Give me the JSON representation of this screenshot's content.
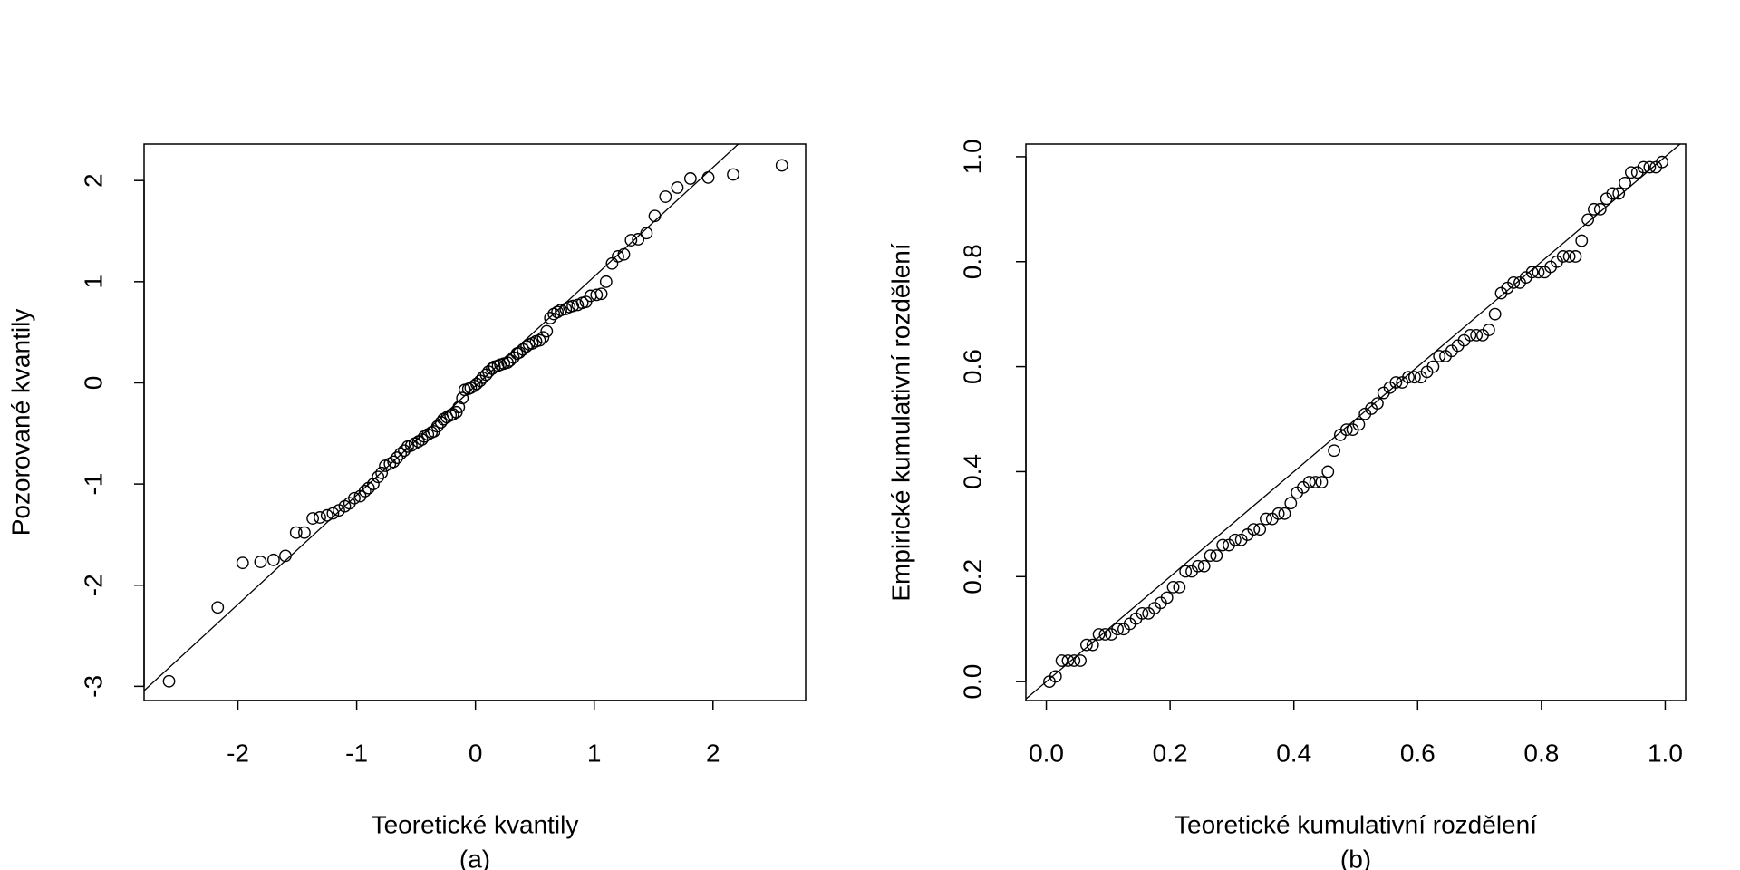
{
  "chart_data": [
    {
      "type": "scatter",
      "xlabel": "Teoretické kvantily",
      "caption": "(a)",
      "ylabel": "Pozorované kvantily",
      "xlim": [
        -2.79,
        2.78
      ],
      "ylim": [
        -3.14,
        2.36
      ],
      "xticks": [
        -2,
        -1,
        0,
        1,
        2
      ],
      "yticks": [
        -3,
        -2,
        -1,
        0,
        1,
        2
      ],
      "ref_line": {
        "slope": 1.08,
        "intercept": -0.03
      },
      "color": "#000000",
      "x": [
        -2.58,
        -2.17,
        -1.96,
        -1.81,
        -1.7,
        -1.6,
        -1.51,
        -1.44,
        -1.37,
        -1.31,
        -1.25,
        -1.2,
        -1.15,
        -1.1,
        -1.06,
        -1.02,
        -0.97,
        -0.93,
        -0.9,
        -0.86,
        -0.82,
        -0.79,
        -0.76,
        -0.72,
        -0.69,
        -0.66,
        -0.63,
        -0.6,
        -0.57,
        -0.54,
        -0.51,
        -0.48,
        -0.45,
        -0.43,
        -0.4,
        -0.37,
        -0.35,
        -0.32,
        -0.29,
        -0.27,
        -0.24,
        -0.21,
        -0.19,
        -0.16,
        -0.14,
        -0.11,
        -0.09,
        -0.06,
        -0.04,
        -0.01,
        0.01,
        0.04,
        0.06,
        0.09,
        0.11,
        0.14,
        0.16,
        0.19,
        0.21,
        0.24,
        0.27,
        0.29,
        0.32,
        0.35,
        0.37,
        0.4,
        0.43,
        0.45,
        0.48,
        0.51,
        0.54,
        0.57,
        0.6,
        0.63,
        0.66,
        0.69,
        0.72,
        0.76,
        0.79,
        0.82,
        0.86,
        0.9,
        0.93,
        0.97,
        1.02,
        1.06,
        1.1,
        1.15,
        1.2,
        1.25,
        1.31,
        1.37,
        1.44,
        1.51,
        1.6,
        1.7,
        1.81,
        1.96,
        2.17,
        2.58
      ],
      "values": [
        -2.95,
        -2.22,
        -1.78,
        -1.77,
        -1.75,
        -1.71,
        -1.48,
        -1.48,
        -1.34,
        -1.33,
        -1.31,
        -1.29,
        -1.26,
        -1.22,
        -1.19,
        -1.14,
        -1.12,
        -1.07,
        -1.04,
        -1.0,
        -0.93,
        -0.89,
        -0.82,
        -0.8,
        -0.78,
        -0.74,
        -0.7,
        -0.67,
        -0.63,
        -0.62,
        -0.6,
        -0.58,
        -0.56,
        -0.53,
        -0.51,
        -0.49,
        -0.48,
        -0.43,
        -0.39,
        -0.36,
        -0.34,
        -0.32,
        -0.31,
        -0.29,
        -0.24,
        -0.15,
        -0.07,
        -0.06,
        -0.05,
        -0.03,
        -0.01,
        0.02,
        0.05,
        0.08,
        0.11,
        0.14,
        0.16,
        0.17,
        0.18,
        0.19,
        0.2,
        0.22,
        0.25,
        0.29,
        0.3,
        0.33,
        0.36,
        0.38,
        0.39,
        0.41,
        0.42,
        0.45,
        0.51,
        0.64,
        0.68,
        0.7,
        0.72,
        0.73,
        0.75,
        0.76,
        0.77,
        0.79,
        0.8,
        0.86,
        0.87,
        0.88,
        1.0,
        1.18,
        1.25,
        1.27,
        1.41,
        1.42,
        1.48,
        1.65,
        1.84,
        1.93,
        2.02,
        2.03,
        2.06,
        2.15
      ]
    },
    {
      "type": "scatter",
      "xlabel": "Teoretické kumulativní rozdělení",
      "caption": "(b)",
      "ylabel": "Empirické kumulativní rozdělení",
      "xlim": [
        -0.033,
        1.033
      ],
      "ylim": [
        -0.036,
        1.024
      ],
      "xticks": [
        {
          "value": 0,
          "label": "0.0"
        },
        0.2,
        0.4,
        0.6,
        0.8,
        {
          "value": 1,
          "label": "1.0"
        }
      ],
      "yticks": [
        {
          "value": 0,
          "label": "0.0"
        },
        0.2,
        0.4,
        0.6,
        0.8,
        {
          "value": 1,
          "label": "1.0"
        }
      ],
      "ref_line": {
        "slope": 1,
        "intercept": 0
      },
      "color": "#000000",
      "x": [
        0.005,
        0.015,
        0.025,
        0.035,
        0.045,
        0.055,
        0.065,
        0.075,
        0.085,
        0.095,
        0.105,
        0.115,
        0.125,
        0.135,
        0.145,
        0.155,
        0.165,
        0.175,
        0.185,
        0.195,
        0.205,
        0.215,
        0.225,
        0.235,
        0.245,
        0.255,
        0.265,
        0.275,
        0.285,
        0.295,
        0.305,
        0.315,
        0.325,
        0.335,
        0.345,
        0.355,
        0.365,
        0.375,
        0.385,
        0.395,
        0.405,
        0.415,
        0.425,
        0.435,
        0.445,
        0.455,
        0.465,
        0.475,
        0.485,
        0.495,
        0.505,
        0.515,
        0.525,
        0.535,
        0.545,
        0.555,
        0.565,
        0.575,
        0.585,
        0.595,
        0.605,
        0.615,
        0.625,
        0.635,
        0.645,
        0.655,
        0.665,
        0.675,
        0.685,
        0.695,
        0.705,
        0.715,
        0.725,
        0.735,
        0.745,
        0.755,
        0.765,
        0.775,
        0.785,
        0.795,
        0.805,
        0.815,
        0.825,
        0.835,
        0.845,
        0.855,
        0.865,
        0.875,
        0.885,
        0.895,
        0.905,
        0.915,
        0.925,
        0.935,
        0.945,
        0.955,
        0.965,
        0.975,
        0.985,
        0.995
      ],
      "values": [
        0.0,
        0.01,
        0.04,
        0.04,
        0.04,
        0.04,
        0.07,
        0.07,
        0.09,
        0.09,
        0.09,
        0.1,
        0.1,
        0.11,
        0.12,
        0.13,
        0.13,
        0.14,
        0.15,
        0.16,
        0.18,
        0.18,
        0.21,
        0.21,
        0.22,
        0.22,
        0.24,
        0.24,
        0.26,
        0.26,
        0.27,
        0.27,
        0.28,
        0.29,
        0.29,
        0.31,
        0.31,
        0.32,
        0.32,
        0.34,
        0.36,
        0.37,
        0.38,
        0.38,
        0.38,
        0.4,
        0.44,
        0.47,
        0.48,
        0.48,
        0.49,
        0.51,
        0.52,
        0.53,
        0.55,
        0.56,
        0.57,
        0.57,
        0.58,
        0.58,
        0.58,
        0.59,
        0.6,
        0.62,
        0.62,
        0.63,
        0.64,
        0.65,
        0.66,
        0.66,
        0.66,
        0.67,
        0.7,
        0.74,
        0.75,
        0.76,
        0.76,
        0.77,
        0.78,
        0.78,
        0.78,
        0.79,
        0.8,
        0.81,
        0.81,
        0.81,
        0.84,
        0.88,
        0.9,
        0.9,
        0.92,
        0.93,
        0.93,
        0.95,
        0.97,
        0.97,
        0.98,
        0.98,
        0.98,
        0.99
      ]
    }
  ]
}
